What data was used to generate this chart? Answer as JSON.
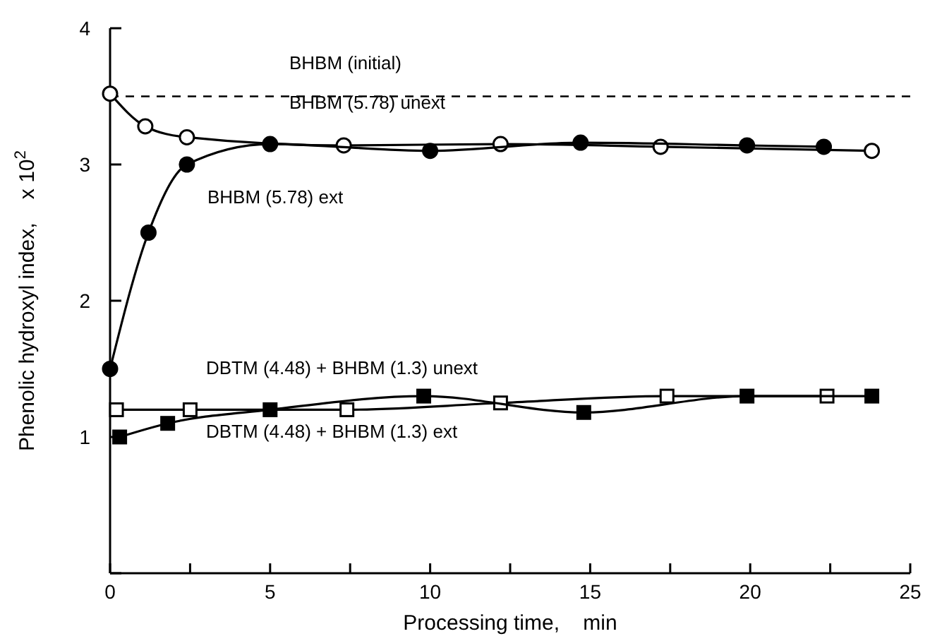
{
  "chart_data": {
    "type": "line",
    "xlabel": "Processing time,    min",
    "ylabel": "Phenolic hydroxyl index,    x 10$^{2}$",
    "xlim": [
      0,
      25
    ],
    "ylim": [
      0,
      4
    ],
    "xticks": [
      0,
      {
        "value": 2.5,
        "label": null
      },
      5,
      {
        "value": 7.5,
        "label": null
      },
      10,
      {
        "value": 12.5,
        "label": null
      },
      15,
      {
        "value": 17.5,
        "label": null
      },
      20,
      {
        "value": 22.5,
        "label": null
      },
      25
    ],
    "yticks": [
      {
        "value": 0,
        "label": null
      },
      1,
      2,
      3,
      4
    ],
    "grid": false,
    "line_style": "solid",
    "series": [
      {
        "color": "#ffffff",
        "marker": "circle",
        "x": [
          0,
          1.1,
          2.4,
          7.3,
          12.2,
          17.2,
          23.8
        ],
        "values": [
          3.52,
          3.28,
          3.2,
          3.14,
          3.15,
          3.13,
          3.1
        ]
      },
      {
        "color": "#000000",
        "marker": "circle",
        "x": [
          0,
          1.2,
          2.4,
          5,
          10,
          14.7,
          19.9,
          22.3
        ],
        "values": [
          1.5,
          2.5,
          3.0,
          3.15,
          3.1,
          3.16,
          3.14,
          3.13
        ]
      },
      {
        "color": "#ffffff",
        "marker": "square",
        "x": [
          0.2,
          2.5,
          7.4,
          12.2,
          17.4,
          22.4
        ],
        "values": [
          1.2,
          1.2,
          1.2,
          1.25,
          1.3,
          1.3
        ]
      },
      {
        "color": "#000000",
        "marker": "square",
        "x": [
          0.3,
          1.8,
          5,
          9.8,
          14.8,
          19.9,
          23.8
        ],
        "values": [
          1.0,
          1.1,
          1.2,
          1.3,
          1.18,
          1.3,
          1.3
        ]
      }
    ],
    "ref_lines": [
      {
        "axis": "y",
        "value": 3.5,
        "line_style": "dashed",
        "color": "#000000"
      }
    ],
    "annotations": [
      "BHBM (initial)",
      "BHBM (5.78) unext",
      "BHBM (5.78) ext",
      "DBTM (4.48) + BHBM (1.3) unext",
      "DBTM (4.48) + BHBM (1.3) ext"
    ]
  }
}
